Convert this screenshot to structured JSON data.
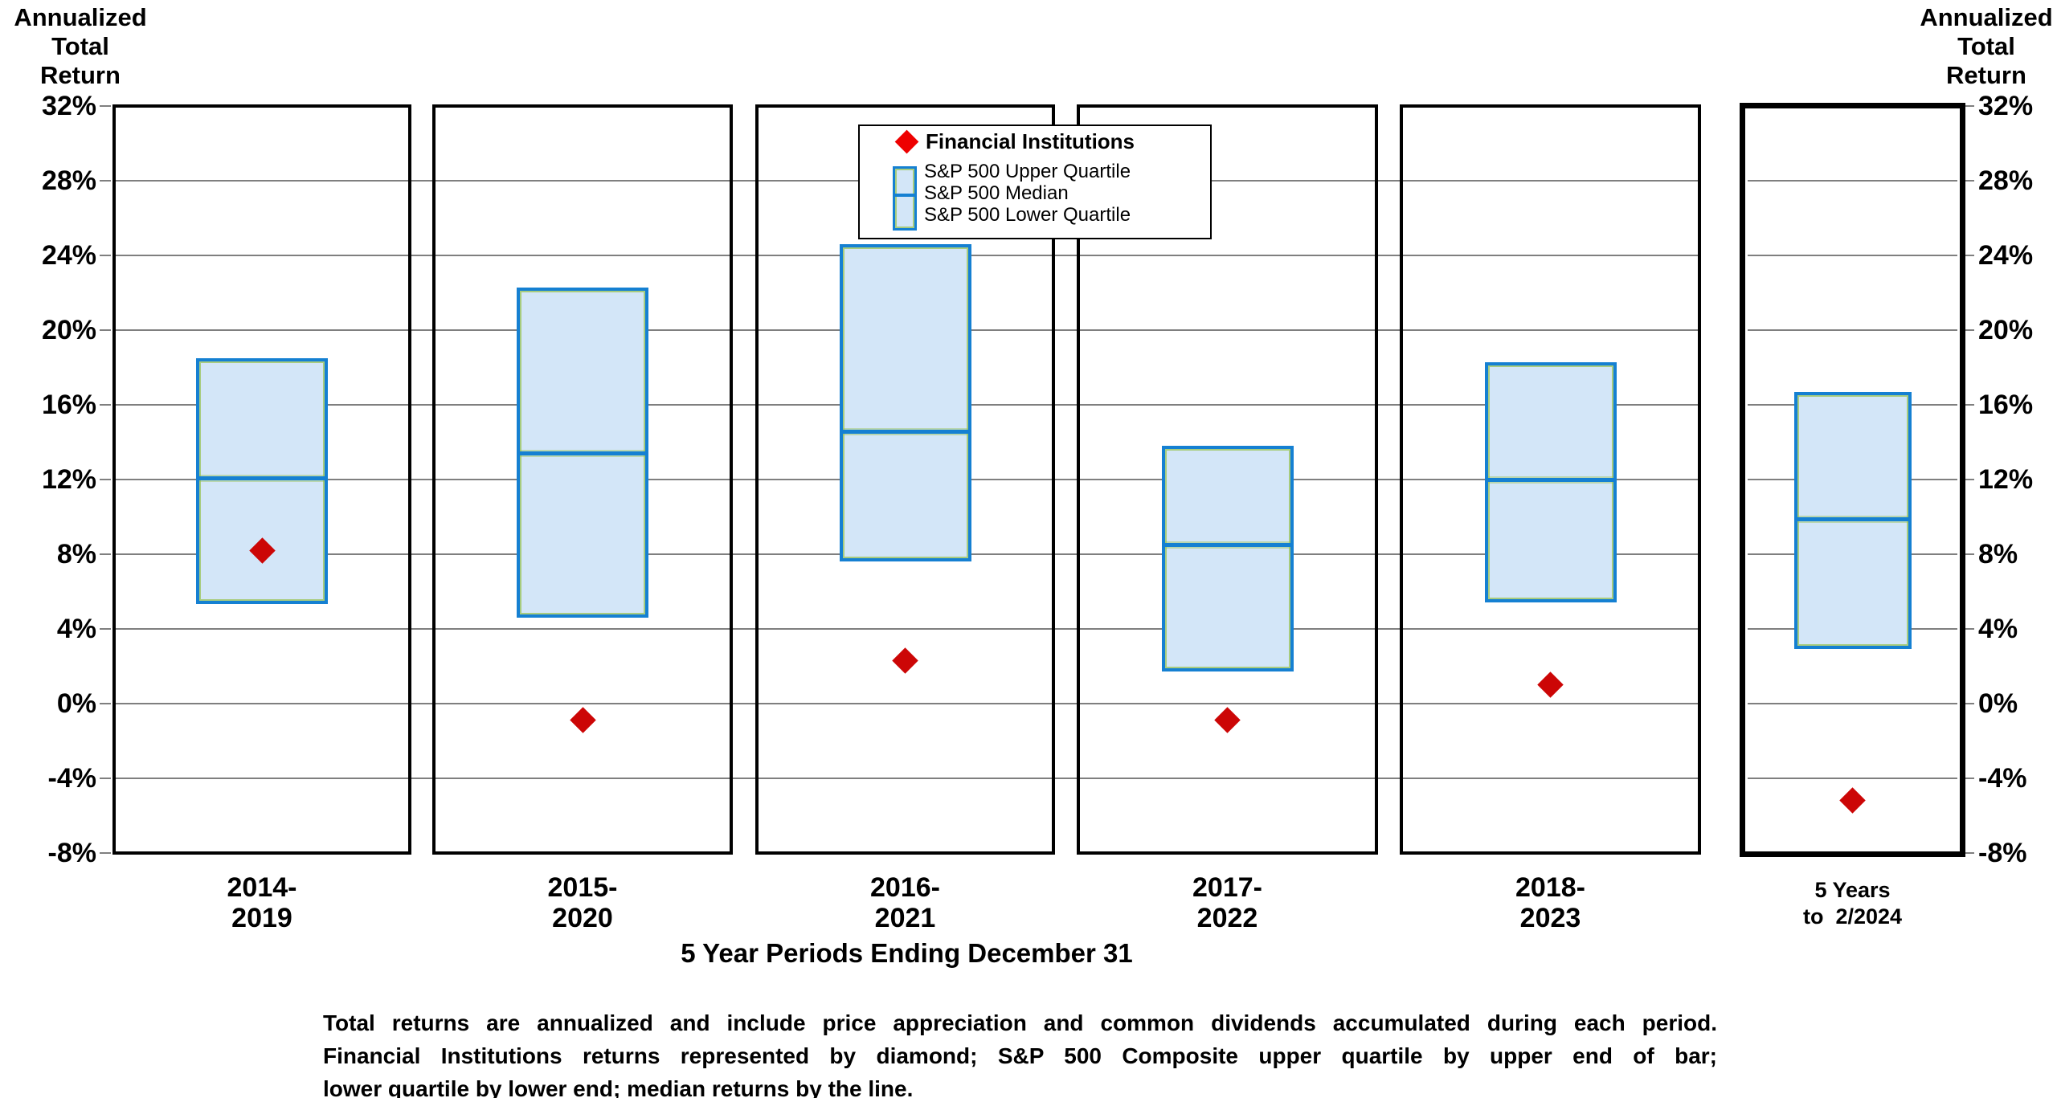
{
  "headers": {
    "left": "Annualized\nTotal\nReturn",
    "right": "Annualized\nTotal\nReturn"
  },
  "legend": {
    "diamond_label": "Financial Institutions",
    "items": [
      "S&P 500 Upper Quartile",
      "S&P 500 Median",
      "S&P 500 Lower Quartile"
    ]
  },
  "x_axis": {
    "title": "5 Year Periods Ending December 31"
  },
  "footnote": {
    "lines": [
      "Total returns are annualized and include price appreciation and common dividends accumulated during each period.",
      "Financial Institutions returns represented by diamond; S&P 500 Composite upper quartile by upper end of bar;",
      "lower quartile by lower end; median returns by the line."
    ]
  },
  "colors": {
    "bar_fill": "#d3e6f8",
    "bar_border": "#1580d2",
    "diamond": "#cc0606",
    "gridline": "#7f7f7f"
  },
  "chart_data": {
    "type": "bar",
    "subtype": "floating-quartile-bars-with-diamond-markers",
    "ylabel": "Annualized Total Return",
    "xlabel": "5 Year Periods Ending December 31",
    "ylim": [
      -8,
      32
    ],
    "y_tick_step": 4,
    "y_tick_labels": [
      "32%",
      "28%",
      "24%",
      "20%",
      "16%",
      "12%",
      "8%",
      "4%",
      "0%",
      "-4%",
      "-8%"
    ],
    "grid": true,
    "legend_position": "top-center",
    "categories": [
      "2014-2019",
      "2015-2020",
      "2016-2021",
      "2017-2022",
      "2018-2023",
      "5 Years to 2/2024"
    ],
    "series": [
      {
        "name": "S&P 500 Upper Quartile",
        "values": [
          18.4,
          22.2,
          24.5,
          13.7,
          18.2,
          16.6
        ]
      },
      {
        "name": "S&P 500 Median",
        "values": [
          12.1,
          13.4,
          14.6,
          8.5,
          12.0,
          9.9
        ]
      },
      {
        "name": "S&P 500 Lower Quartile",
        "values": [
          5.4,
          4.7,
          7.7,
          1.8,
          5.5,
          3.0
        ]
      },
      {
        "name": "Financial Institutions",
        "values": [
          8.2,
          -0.9,
          2.3,
          -0.9,
          1.0,
          -5.2
        ]
      }
    ],
    "periods": [
      {
        "label": "2014-\n2019",
        "upper_quartile": 18.4,
        "median": 12.1,
        "lower_quartile": 5.4,
        "financial_institutions": 8.2,
        "emphasized": false
      },
      {
        "label": "2015-\n2020",
        "upper_quartile": 22.2,
        "median": 13.4,
        "lower_quartile": 4.7,
        "financial_institutions": -0.9,
        "emphasized": false
      },
      {
        "label": "2016-\n2021",
        "upper_quartile": 24.5,
        "median": 14.6,
        "lower_quartile": 7.7,
        "financial_institutions": 2.3,
        "emphasized": false
      },
      {
        "label": "2017-\n2022",
        "upper_quartile": 13.7,
        "median": 8.5,
        "lower_quartile": 1.8,
        "financial_institutions": -0.9,
        "emphasized": false
      },
      {
        "label": "2018-\n2023",
        "upper_quartile": 18.2,
        "median": 12.0,
        "lower_quartile": 5.5,
        "financial_institutions": 1.0,
        "emphasized": false
      },
      {
        "label": "5 Years\nto  2/2024",
        "upper_quartile": 16.6,
        "median": 9.9,
        "lower_quartile": 3.0,
        "financial_institutions": -5.2,
        "emphasized": true
      }
    ]
  }
}
